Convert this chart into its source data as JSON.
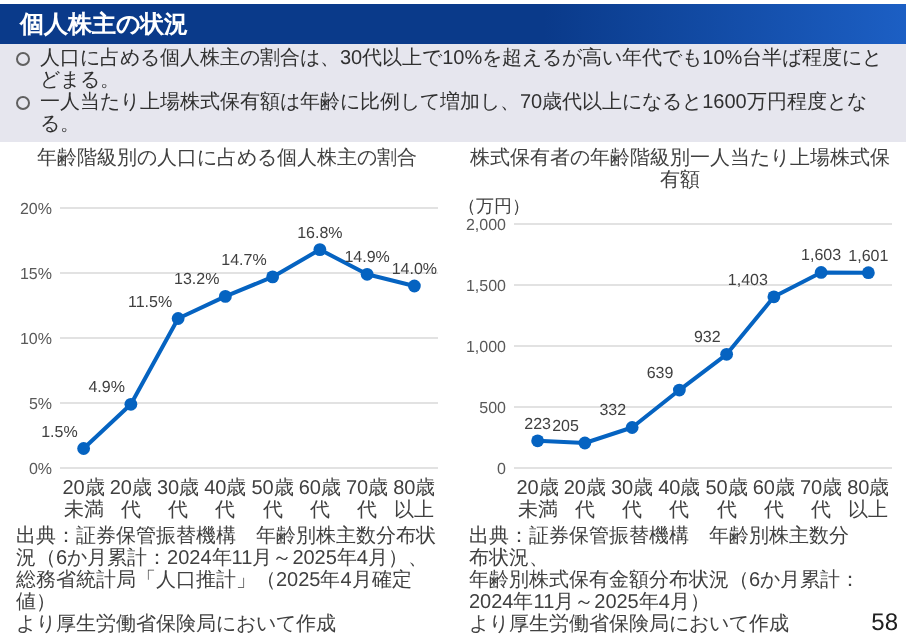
{
  "chart_data": [
    {
      "type": "other",
      "title": "個人株主の状況",
      "annotations": [
        "人口に占める個人株主の割合は、30代以上で10%を超えるが高い年代でも10%台半ば程度にとどまる。",
        "一人当たり上場株式保有額は年齢に比例して増加し、70歳代以上になると1600万円程度となる。",
        "58"
      ]
    },
    {
      "type": "line",
      "title": "年齢階級別の人口に占める個人株主の割合",
      "categories": [
        "20歳未満",
        "20歳代",
        "30歳代",
        "40歳代",
        "50歳代",
        "60歳代",
        "70歳代",
        "80歳以上"
      ],
      "values": [
        1.5,
        4.9,
        11.5,
        13.2,
        14.7,
        16.8,
        14.9,
        14.0
      ],
      "value_labels": [
        "1.5%",
        "4.9%",
        "11.5%",
        "13.2%",
        "14.7%",
        "16.8%",
        "14.9%",
        "14.0%"
      ],
      "color": "#0563c1",
      "marker": "circle",
      "grid": "y",
      "ylim": [
        0,
        20
      ],
      "yticks": [
        {
          "value": 0,
          "label": "0%"
        },
        {
          "value": 5,
          "label": "5%"
        },
        {
          "value": 10,
          "label": "10%"
        },
        {
          "value": 15,
          "label": "15%"
        },
        {
          "value": 20,
          "label": "20%"
        }
      ],
      "annotations": [
        "出典：証券保管振替機構　年齢別株主数分布状況（6か月累計：2024年11月～2025年4月）、",
        "総務省統計局「人口推計」（2025年4月確定値）",
        "より厚生労働省保険局において作成"
      ]
    },
    {
      "type": "line",
      "title": "株式保有者の年齢階級別一人当たり上場株式保有額",
      "ylabel": "（万円）",
      "categories": [
        "20歳未満",
        "20歳代",
        "30歳代",
        "40歳代",
        "50歳代",
        "60歳代",
        "70歳代",
        "80歳以上"
      ],
      "values": [
        223,
        205,
        332,
        639,
        932,
        1403,
        1603,
        1601
      ],
      "value_labels": [
        "223",
        "205",
        "332",
        "639",
        "932",
        "1,403",
        "1,603",
        "1,601"
      ],
      "color": "#0563c1",
      "marker": "circle",
      "grid": "y",
      "ylim": [
        0,
        2000
      ],
      "yticks": [
        0,
        500,
        {
          "value": 1000,
          "label": "1,000"
        },
        {
          "value": 1500,
          "label": "1,500"
        },
        {
          "value": 2000,
          "label": "2,000"
        }
      ],
      "annotations": [
        "出典：証券保管振替機構　年齢別株主数分布状況、",
        "年齢別株式保有金額分布状況（6か月累計：2024年11月～2025年4月）",
        "より厚生労働省保険局において作成"
      ]
    }
  ]
}
